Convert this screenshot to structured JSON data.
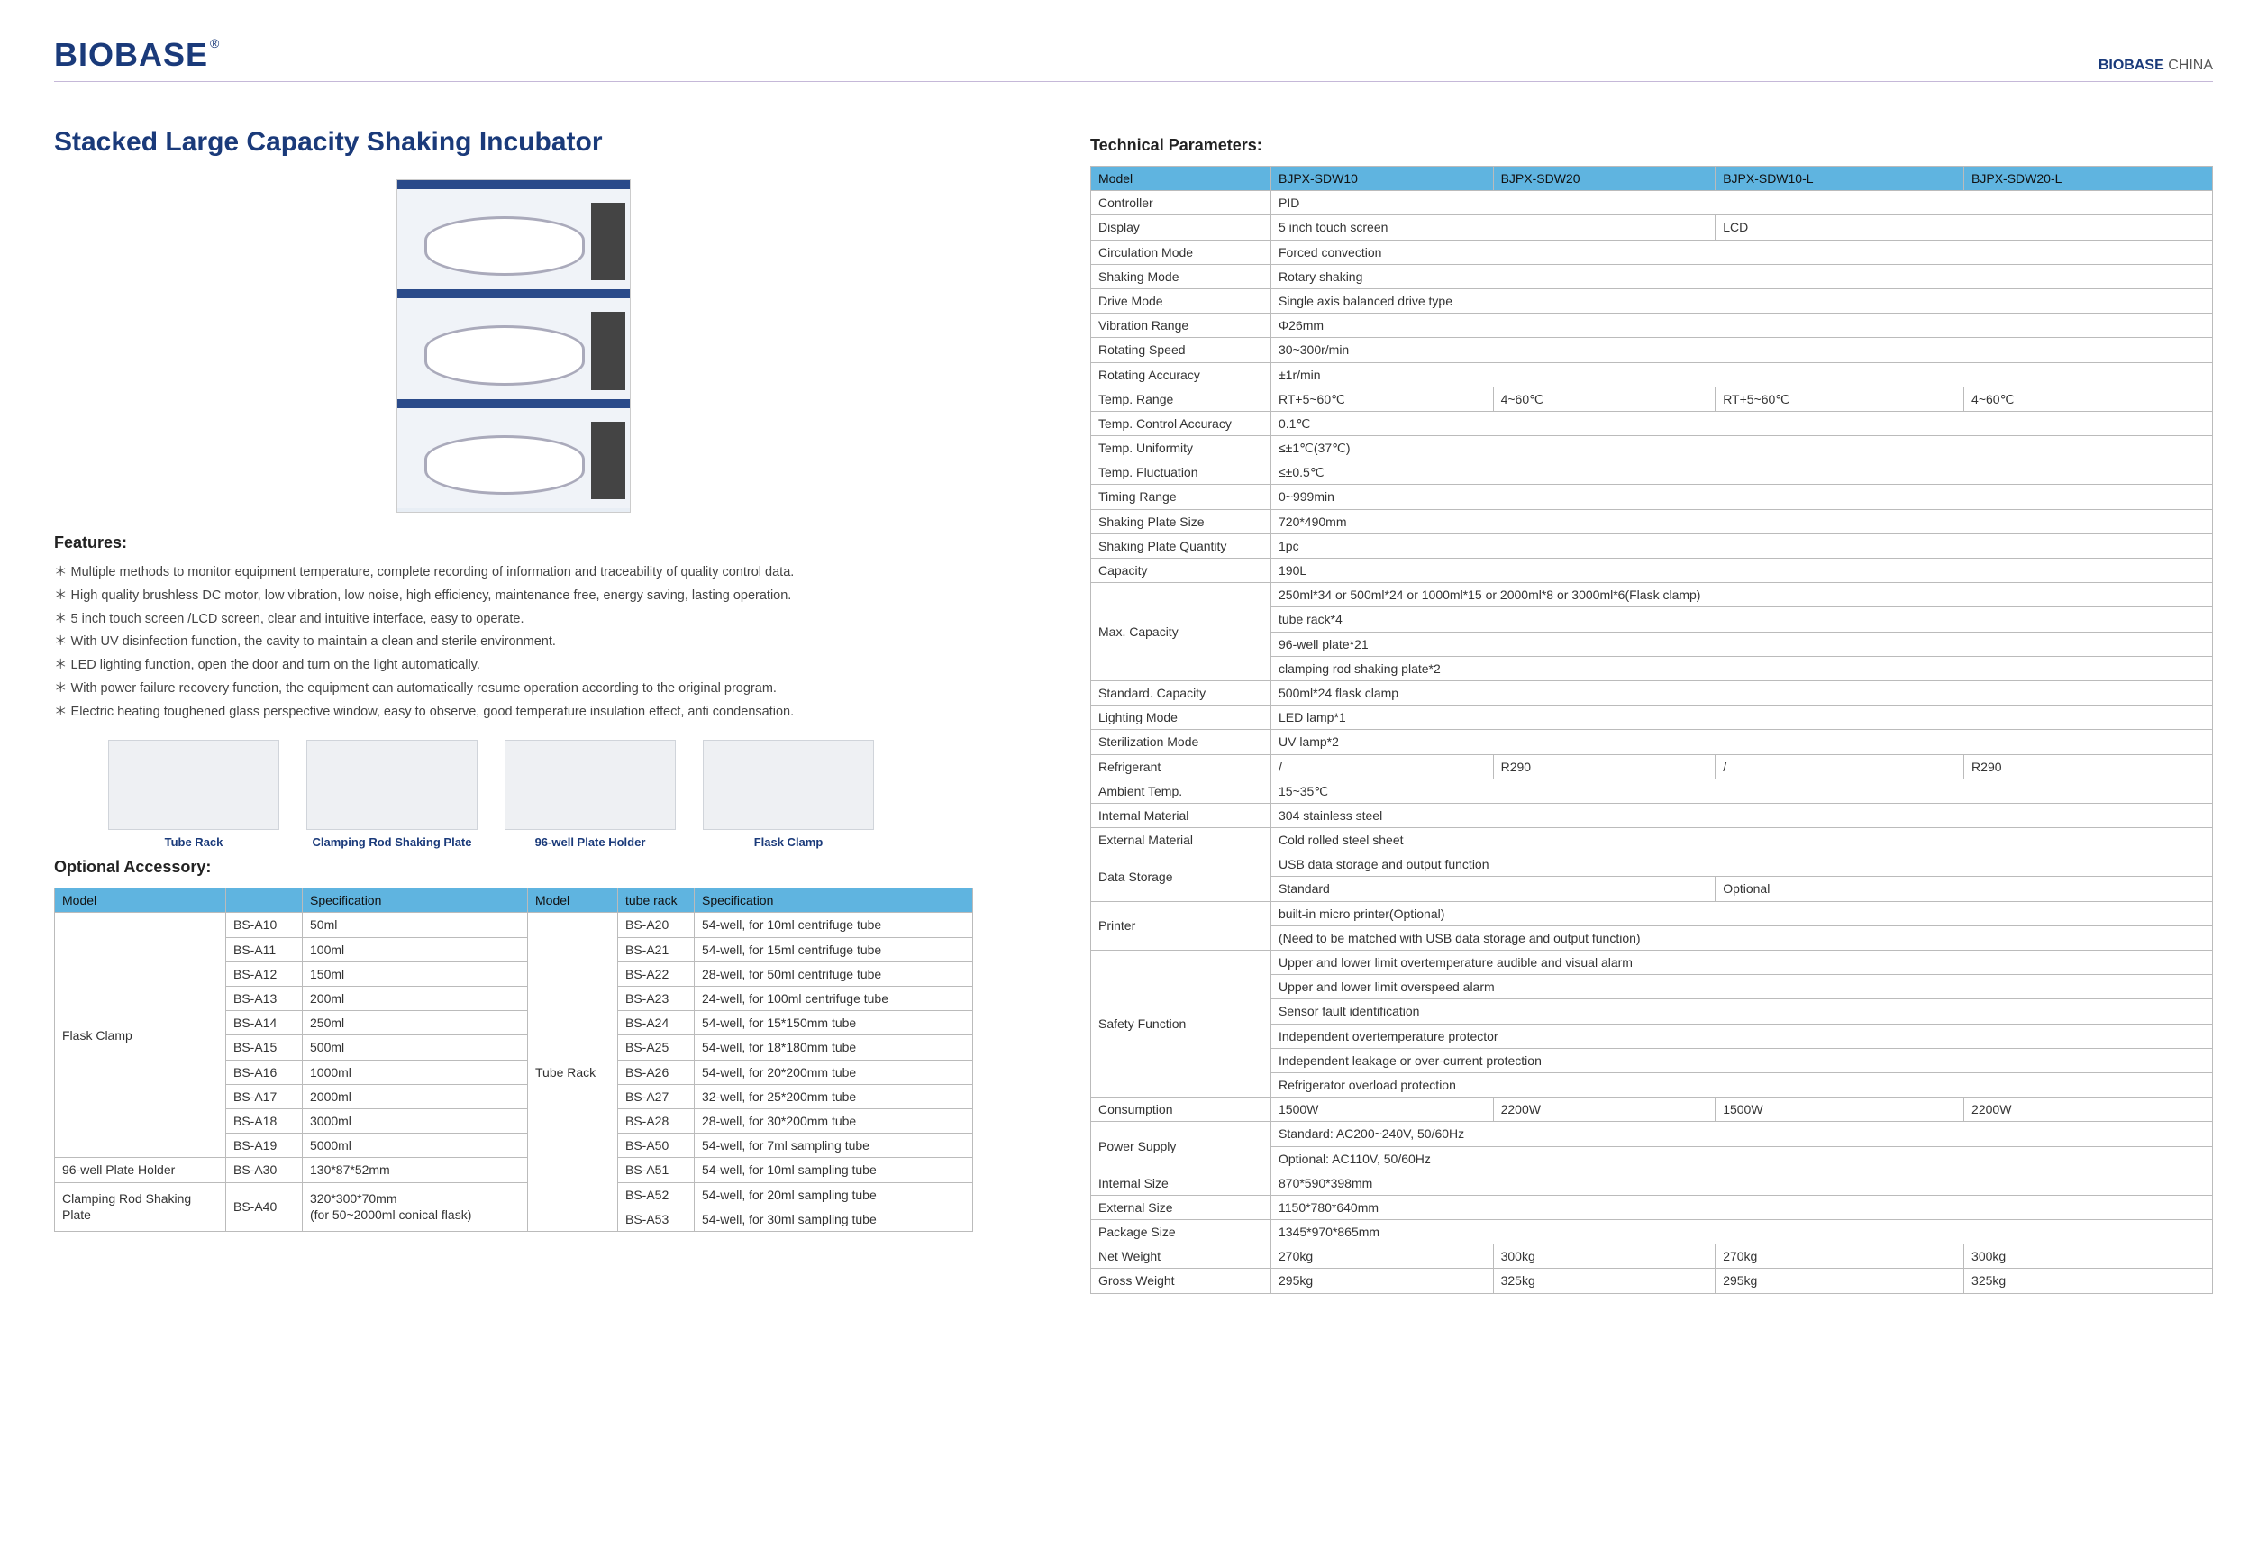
{
  "brand": {
    "logo_text": "BIOBASE",
    "registered": "®",
    "header_right_brand": "BIOBASE",
    "header_right_country": " CHINA",
    "brand_color": "#1a3a7a",
    "table_header_bg": "#5fb4e0"
  },
  "title": "Stacked Large Capacity Shaking Incubator",
  "sections": {
    "features": "Features",
    "optional_accessory": "Optional Accessory",
    "technical_parameters": "Technical Parameters"
  },
  "features": [
    "Multiple methods to monitor equipment temperature, complete recording of information and traceability of quality control data.",
    "High quality brushless DC motor, low vibration, low noise, high efficiency, maintenance free, energy saving, lasting operation.",
    "5 inch touch screen /LCD screen, clear and intuitive interface, easy to operate.",
    "With UV disinfection function, the cavity to maintain a clean and sterile environment.",
    "LED lighting function, open the door and turn on the light automatically.",
    "With power failure recovery function, the equipment can automatically resume operation according to the original program.",
    "Electric heating toughened glass perspective window, easy to observe, good temperature insulation effect, anti condensation."
  ],
  "accessory_images": [
    {
      "label": "Tube Rack"
    },
    {
      "label": "Clamping Rod Shaking Plate"
    },
    {
      "label": "96-well Plate Holder"
    },
    {
      "label": "Flask Clamp"
    }
  ],
  "accessory_table": {
    "headers": [
      "Model",
      "",
      "Specification",
      "Model",
      "tube rack",
      "Specification"
    ],
    "rows": [
      [
        "Flask Clamp",
        "BS-A10",
        "50ml",
        "Tube Rack",
        "BS-A20",
        "54-well, for 10ml centrifuge tube"
      ],
      [
        "",
        "BS-A11",
        "100ml",
        "",
        "BS-A21",
        "54-well, for 15ml centrifuge tube"
      ],
      [
        "",
        "BS-A12",
        "150ml",
        "",
        "BS-A22",
        "28-well, for 50ml centrifuge tube"
      ],
      [
        "",
        "BS-A13",
        "200ml",
        "",
        "BS-A23",
        "24-well, for 100ml centrifuge tube"
      ],
      [
        "",
        "BS-A14",
        "250ml",
        "",
        "BS-A24",
        "54-well, for 15*150mm tube"
      ],
      [
        "",
        "BS-A15",
        "500ml",
        "",
        "BS-A25",
        "54-well, for 18*180mm tube"
      ],
      [
        "",
        "BS-A16",
        "1000ml",
        "",
        "BS-A26",
        "54-well, for 20*200mm tube"
      ],
      [
        "",
        "BS-A17",
        "2000ml",
        "",
        "BS-A27",
        "32-well, for 25*200mm tube"
      ],
      [
        "",
        "BS-A18",
        "3000ml",
        "",
        "BS-A28",
        "28-well, for 30*200mm tube"
      ],
      [
        "",
        "BS-A19",
        "5000ml",
        "",
        "BS-A50",
        "54-well, for 7ml sampling tube"
      ],
      [
        "96-well Plate Holder",
        "BS-A30",
        "130*87*52mm",
        "",
        "BS-A51",
        "54-well, for 10ml sampling tube"
      ],
      [
        "Clamping Rod Shaking Plate",
        "BS-A40",
        "320*300*70mm\n(for 50~2000ml conical flask)",
        "",
        "BS-A52",
        "54-well, for 20ml sampling tube"
      ],
      [
        "",
        "",
        "",
        "",
        "BS-A53",
        "54-well, for 30ml sampling tube"
      ]
    ],
    "col1_rowspans": {
      "0": 10,
      "10": 1,
      "11": 2
    },
    "col2_rowspans": {
      "11": 2
    },
    "col3_rowspans": {
      "11": 2
    },
    "col4_rowspans": {
      "0": 13
    }
  },
  "param_table": {
    "headers": [
      "Model",
      "BJPX-SDW10",
      "BJPX-SDW20",
      "BJPX-SDW10-L",
      "BJPX-SDW20-L"
    ],
    "rows": [
      {
        "label": "Controller",
        "cells": [
          [
            "PID",
            4
          ]
        ]
      },
      {
        "label": "Display",
        "cells": [
          [
            "5 inch touch screen",
            2
          ],
          [
            "LCD",
            2
          ]
        ]
      },
      {
        "label": "Circulation Mode",
        "cells": [
          [
            "Forced convection",
            4
          ]
        ]
      },
      {
        "label": "Shaking Mode",
        "cells": [
          [
            "Rotary shaking",
            4
          ]
        ]
      },
      {
        "label": "Drive Mode",
        "cells": [
          [
            "Single axis balanced drive type",
            4
          ]
        ]
      },
      {
        "label": "Vibration Range",
        "cells": [
          [
            "Φ26mm",
            4
          ]
        ]
      },
      {
        "label": "Rotating Speed",
        "cells": [
          [
            "30~300r/min",
            4
          ]
        ]
      },
      {
        "label": "Rotating Accuracy",
        "cells": [
          [
            "±1r/min",
            4
          ]
        ]
      },
      {
        "label": "Temp. Range",
        "cells": [
          [
            "RT+5~60℃",
            1
          ],
          [
            "4~60℃",
            1
          ],
          [
            "RT+5~60℃",
            1
          ],
          [
            "4~60℃",
            1
          ]
        ]
      },
      {
        "label": "Temp. Control Accuracy",
        "cells": [
          [
            "0.1℃",
            4
          ]
        ]
      },
      {
        "label": "Temp. Uniformity",
        "cells": [
          [
            "≤±1℃(37℃)",
            4
          ]
        ]
      },
      {
        "label": "Temp. Fluctuation",
        "cells": [
          [
            "≤±0.5℃",
            4
          ]
        ]
      },
      {
        "label": "Timing Range",
        "cells": [
          [
            "0~999min",
            4
          ]
        ]
      },
      {
        "label": "Shaking Plate Size",
        "cells": [
          [
            "720*490mm",
            4
          ]
        ]
      },
      {
        "label": "Shaking Plate Quantity",
        "cells": [
          [
            "1pc",
            4
          ]
        ]
      },
      {
        "label": "Capacity",
        "cells": [
          [
            "190L",
            4
          ]
        ]
      },
      {
        "label": "Max. Capacity",
        "multi": [
          "250ml*34 or 500ml*24 or 1000ml*15 or 2000ml*8 or 3000ml*6(Flask clamp)",
          "tube rack*4",
          "96-well plate*21",
          "clamping rod shaking plate*2"
        ]
      },
      {
        "label": "Standard. Capacity",
        "cells": [
          [
            "500ml*24 flask clamp",
            4
          ]
        ]
      },
      {
        "label": "Lighting Mode",
        "cells": [
          [
            "LED lamp*1",
            4
          ]
        ]
      },
      {
        "label": "Sterilization Mode",
        "cells": [
          [
            "UV lamp*2",
            4
          ]
        ]
      },
      {
        "label": "Refrigerant",
        "cells": [
          [
            "/",
            1
          ],
          [
            "R290",
            1
          ],
          [
            "/",
            1
          ],
          [
            "R290",
            1
          ]
        ]
      },
      {
        "label": "Ambient Temp.",
        "cells": [
          [
            "15~35℃",
            4
          ]
        ]
      },
      {
        "label": "Internal Material",
        "cells": [
          [
            "304 stainless steel",
            4
          ]
        ]
      },
      {
        "label": "External Material",
        "cells": [
          [
            "Cold rolled steel sheet",
            4
          ]
        ]
      },
      {
        "label": "Data Storage",
        "multi_cells": [
          [
            [
              "USB data storage and output function",
              4
            ]
          ],
          [
            [
              "Standard",
              2
            ],
            [
              "Optional",
              2
            ]
          ]
        ]
      },
      {
        "label": "Printer",
        "multi": [
          "built-in micro printer(Optional)",
          "(Need to be matched with USB data storage and output function)"
        ]
      },
      {
        "label": "Safety Function",
        "multi": [
          "Upper and lower limit overtemperature audible and visual alarm",
          "Upper and lower limit overspeed alarm",
          "Sensor fault identification",
          "Independent overtemperature protector",
          "Independent leakage or over-current protection",
          "Refrigerator overload protection"
        ]
      },
      {
        "label": "Consumption",
        "cells": [
          [
            "1500W",
            1
          ],
          [
            "2200W",
            1
          ],
          [
            "1500W",
            1
          ],
          [
            "2200W",
            1
          ]
        ]
      },
      {
        "label": "Power Supply",
        "multi": [
          "Standard: AC200~240V, 50/60Hz",
          "Optional: AC110V, 50/60Hz"
        ]
      },
      {
        "label": "Internal Size",
        "cells": [
          [
            "870*590*398mm",
            4
          ]
        ]
      },
      {
        "label": "External Size",
        "cells": [
          [
            "1150*780*640mm",
            4
          ]
        ]
      },
      {
        "label": "Package Size",
        "cells": [
          [
            "1345*970*865mm",
            4
          ]
        ]
      },
      {
        "label": "Net Weight",
        "cells": [
          [
            "270kg",
            1
          ],
          [
            "300kg",
            1
          ],
          [
            "270kg",
            1
          ],
          [
            "300kg",
            1
          ]
        ]
      },
      {
        "label": "Gross Weight",
        "cells": [
          [
            "295kg",
            1
          ],
          [
            "325kg",
            1
          ],
          [
            "295kg",
            1
          ],
          [
            "325kg",
            1
          ]
        ]
      }
    ]
  }
}
